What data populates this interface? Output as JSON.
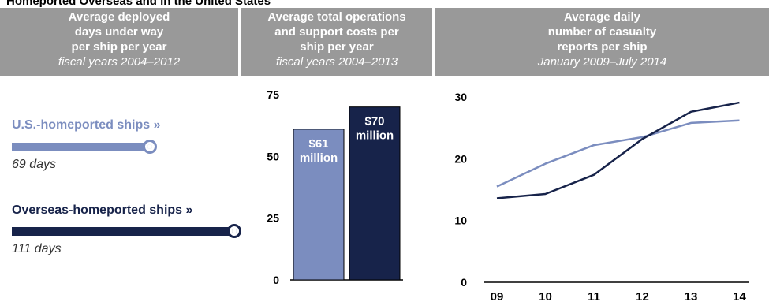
{
  "page_title": "Homeported Overseas and in the United States",
  "headers": [
    {
      "title_lines": [
        "Average deployed",
        "days under way",
        "per ship per year"
      ],
      "subtitle": "fiscal years 2004–2012"
    },
    {
      "title_lines": [
        "Average total operations",
        "and support costs per",
        "ship per year"
      ],
      "subtitle": "fiscal years 2004–2013"
    },
    {
      "title_lines": [
        "Average daily",
        "number of casualty",
        "reports per ship"
      ],
      "subtitle": "January 2009–July 2014"
    }
  ],
  "colors": {
    "us": "#7b8dbf",
    "overseas": "#17234a",
    "header_bg": "#999999"
  },
  "chart_data": [
    {
      "type": "bar",
      "orientation": "horizontal",
      "categories": [
        "U.S.-homeported ships »",
        "Overseas-homeported ships »"
      ],
      "values": [
        69,
        111
      ],
      "value_labels": [
        "69 days",
        "111 days"
      ],
      "units": "days"
    },
    {
      "type": "bar",
      "categories": [
        "U.S.-homeported",
        "Overseas-homeported"
      ],
      "values": [
        61,
        70
      ],
      "value_labels": [
        [
          "$61",
          "million"
        ],
        [
          "$70",
          "million"
        ]
      ],
      "ylim": [
        0,
        75
      ],
      "yticks": [
        "0",
        "25",
        "50",
        "75"
      ]
    },
    {
      "type": "line",
      "x": [
        "09",
        "10",
        "11",
        "12",
        "13",
        "14"
      ],
      "series": [
        {
          "key": "us",
          "values": [
            15.5,
            19.2,
            22.2,
            23.5,
            25.8,
            26.2
          ]
        },
        {
          "key": "overseas",
          "values": [
            13.6,
            14.3,
            17.4,
            23.2,
            27.6,
            29.1
          ]
        }
      ],
      "ylim": [
        0,
        30
      ],
      "yticks": [
        "0",
        "10",
        "20",
        "30"
      ]
    }
  ]
}
